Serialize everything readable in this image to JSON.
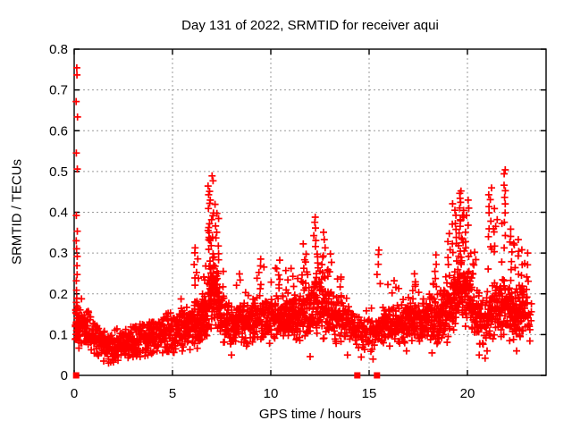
{
  "colors": {
    "marker": "#ff0000",
    "grid": "#9b9b9b",
    "axis": "#000000",
    "text": "#000000",
    "background": "#ffffff"
  },
  "chart_data": {
    "type": "scatter",
    "title": "Day 131 of 2022, SRMTID for receiver aqui",
    "xlabel": "GPS time / hours",
    "ylabel": "SRMTID / TECUs",
    "xlim": [
      0,
      24
    ],
    "ylim": [
      0,
      0.8
    ],
    "xticks": [
      0,
      5,
      10,
      15,
      20
    ],
    "xtick_labels": [
      "0",
      "5",
      "10",
      "15",
      "20"
    ],
    "yticks": [
      0,
      0.1,
      0.2,
      0.3,
      0.4,
      0.5,
      0.6,
      0.7,
      0.8
    ],
    "ytick_labels": [
      "0",
      "0.1",
      "0.2",
      "0.3",
      "0.4",
      "0.5",
      "0.6",
      "0.7",
      "0.8"
    ],
    "grid": true,
    "legend": "none",
    "marker": "plus",
    "series_name": "SRMTID",
    "band_median": [
      [
        0.05,
        0.13
      ],
      [
        0.4,
        0.12
      ],
      [
        0.8,
        0.105
      ],
      [
        1.2,
        0.085
      ],
      [
        1.6,
        0.07
      ],
      [
        2.0,
        0.072
      ],
      [
        2.5,
        0.08
      ],
      [
        3.0,
        0.088
      ],
      [
        3.5,
        0.085
      ],
      [
        4.0,
        0.095
      ],
      [
        4.5,
        0.1
      ],
      [
        5.0,
        0.108
      ],
      [
        5.5,
        0.112
      ],
      [
        6.0,
        0.12
      ],
      [
        6.4,
        0.135
      ],
      [
        6.8,
        0.16
      ],
      [
        7.0,
        0.21
      ],
      [
        7.2,
        0.19
      ],
      [
        7.5,
        0.15
      ],
      [
        7.9,
        0.125
      ],
      [
        8.4,
        0.12
      ],
      [
        9.0,
        0.128
      ],
      [
        9.4,
        0.138
      ],
      [
        9.8,
        0.132
      ],
      [
        10.3,
        0.142
      ],
      [
        10.8,
        0.148
      ],
      [
        11.2,
        0.142
      ],
      [
        11.6,
        0.15
      ],
      [
        12.0,
        0.165
      ],
      [
        12.3,
        0.175
      ],
      [
        12.7,
        0.16
      ],
      [
        13.1,
        0.15
      ],
      [
        13.5,
        0.138
      ],
      [
        14.0,
        0.12
      ],
      [
        14.5,
        0.105
      ],
      [
        15.0,
        0.1
      ],
      [
        15.5,
        0.115
      ],
      [
        16.0,
        0.125
      ],
      [
        16.5,
        0.12
      ],
      [
        17.0,
        0.13
      ],
      [
        17.5,
        0.128
      ],
      [
        18.0,
        0.132
      ],
      [
        18.5,
        0.142
      ],
      [
        19.0,
        0.16
      ],
      [
        19.4,
        0.19
      ],
      [
        19.8,
        0.21
      ],
      [
        20.1,
        0.19
      ],
      [
        20.5,
        0.14
      ],
      [
        20.9,
        0.125
      ],
      [
        21.2,
        0.15
      ],
      [
        21.6,
        0.16
      ],
      [
        22.0,
        0.17
      ],
      [
        22.4,
        0.155
      ],
      [
        22.7,
        0.165
      ],
      [
        23.0,
        0.15
      ],
      [
        23.25,
        0.135
      ]
    ],
    "band_halfwidth": [
      [
        0,
        0.045
      ],
      [
        1.6,
        0.028
      ],
      [
        3,
        0.03
      ],
      [
        5,
        0.038
      ],
      [
        6.6,
        0.05
      ],
      [
        7.1,
        0.065
      ],
      [
        8,
        0.038
      ],
      [
        10,
        0.042
      ],
      [
        12,
        0.05
      ],
      [
        12.4,
        0.055
      ],
      [
        13.5,
        0.045
      ],
      [
        14.5,
        0.032
      ],
      [
        15.2,
        0.03
      ],
      [
        16,
        0.038
      ],
      [
        17,
        0.042
      ],
      [
        18.5,
        0.048
      ],
      [
        19.6,
        0.065
      ],
      [
        20.2,
        0.06
      ],
      [
        20.9,
        0.038
      ],
      [
        21.5,
        0.055
      ],
      [
        22,
        0.055
      ],
      [
        22.7,
        0.05
      ],
      [
        23.25,
        0.042
      ]
    ],
    "upper_tail": [
      [
        0,
        0.08
      ],
      [
        1.6,
        0.025
      ],
      [
        3,
        0.035
      ],
      [
        4.5,
        0.06
      ],
      [
        5.5,
        0.07
      ],
      [
        6.4,
        0.12
      ],
      [
        7.0,
        0.22
      ],
      [
        7.3,
        0.18
      ],
      [
        7.9,
        0.07
      ],
      [
        8.5,
        0.09
      ],
      [
        9.4,
        0.12
      ],
      [
        10.3,
        0.12
      ],
      [
        11,
        0.09
      ],
      [
        11.7,
        0.13
      ],
      [
        12.3,
        0.17
      ],
      [
        13,
        0.12
      ],
      [
        13.6,
        0.09
      ],
      [
        14.5,
        0.05
      ],
      [
        15.5,
        0.15
      ],
      [
        16.3,
        0.08
      ],
      [
        17.3,
        0.09
      ],
      [
        18.3,
        0.12
      ],
      [
        19.2,
        0.18
      ],
      [
        19.7,
        0.21
      ],
      [
        20.1,
        0.17
      ],
      [
        20.7,
        0.07
      ],
      [
        21.2,
        0.22
      ],
      [
        21.9,
        0.26
      ],
      [
        22.4,
        0.16
      ],
      [
        22.8,
        0.12
      ],
      [
        23.1,
        0.09
      ],
      [
        23.25,
        0.07
      ]
    ],
    "density_per_hour": [
      [
        0,
        105
      ],
      [
        1,
        95
      ],
      [
        3,
        90
      ],
      [
        5,
        95
      ],
      [
        6.7,
        150
      ],
      [
        7.3,
        130
      ],
      [
        8,
        100
      ],
      [
        10,
        105
      ],
      [
        12,
        115
      ],
      [
        13,
        105
      ],
      [
        14.2,
        75
      ],
      [
        15,
        65
      ],
      [
        15.7,
        85
      ],
      [
        17,
        100
      ],
      [
        18.5,
        110
      ],
      [
        19.5,
        160
      ],
      [
        20.3,
        115
      ],
      [
        20.8,
        75
      ],
      [
        21.3,
        105
      ],
      [
        22,
        125
      ],
      [
        22.7,
        135
      ],
      [
        23.05,
        65
      ],
      [
        23.25,
        35
      ]
    ],
    "x_data_range": [
      0.05,
      23.28
    ],
    "spike_columns": [
      {
        "x": 0.12,
        "jitter": 0.05,
        "ys": [
          0.757,
          0.739,
          0.669,
          0.636,
          0.544,
          0.509,
          0.395,
          0.355,
          0.33,
          0.31,
          0.292,
          0.27,
          0.25,
          0.23,
          0.21,
          0.19,
          0.18,
          0.17,
          0.16,
          0.15,
          0.14,
          0.13,
          0.12,
          0.11,
          0.1,
          0.09
        ]
      },
      {
        "x": 6.2,
        "jitter": 0.12,
        "ys": [
          0.315,
          0.3,
          0.285,
          0.27,
          0.255,
          0.24,
          0.22
        ]
      },
      {
        "x": 6.95,
        "jitter": 0.14,
        "ys": [
          0.487,
          0.478,
          0.465,
          0.45,
          0.44,
          0.43,
          0.42,
          0.41,
          0.4,
          0.39,
          0.38,
          0.37,
          0.36,
          0.35,
          0.34,
          0.335,
          0.33,
          0.32,
          0.31,
          0.3,
          0.29,
          0.28,
          0.27,
          0.26,
          0.25,
          0.24,
          0.23,
          0.22,
          0.21,
          0.2
        ]
      },
      {
        "x": 7.25,
        "jitter": 0.1,
        "ys": [
          0.42,
          0.4,
          0.385,
          0.365,
          0.35,
          0.335,
          0.315,
          0.3,
          0.285,
          0.27,
          0.255,
          0.24
        ]
      },
      {
        "x": 8.35,
        "jitter": 0.1,
        "ys": [
          0.25,
          0.235,
          0.22
        ]
      },
      {
        "x": 9.4,
        "jitter": 0.12,
        "ys": [
          0.285,
          0.27,
          0.255,
          0.24,
          0.22
        ]
      },
      {
        "x": 10.35,
        "jitter": 0.12,
        "ys": [
          0.285,
          0.265,
          0.245,
          0.225
        ]
      },
      {
        "x": 11.1,
        "jitter": 0.1,
        "ys": [
          0.26,
          0.24,
          0.22
        ]
      },
      {
        "x": 11.7,
        "jitter": 0.12,
        "ys": [
          0.32,
          0.3,
          0.285,
          0.265,
          0.245,
          0.225
        ]
      },
      {
        "x": 12.3,
        "jitter": 0.13,
        "ys": [
          0.39,
          0.375,
          0.36,
          0.345,
          0.33,
          0.315,
          0.3,
          0.288,
          0.275,
          0.262,
          0.25,
          0.238,
          0.225
        ]
      },
      {
        "x": 12.7,
        "jitter": 0.1,
        "ys": [
          0.35,
          0.33,
          0.31,
          0.29,
          0.27,
          0.25
        ]
      },
      {
        "x": 13.0,
        "jitter": 0.1,
        "ys": [
          0.3,
          0.28,
          0.26,
          0.24
        ]
      },
      {
        "x": 13.6,
        "jitter": 0.08,
        "ys": [
          0.24,
          0.22
        ]
      },
      {
        "x": 15.5,
        "jitter": 0.1,
        "ys": [
          0.31,
          0.295,
          0.27,
          0.245,
          0.225
        ]
      },
      {
        "x": 16.3,
        "jitter": 0.1,
        "ys": [
          0.235,
          0.215
        ]
      },
      {
        "x": 17.3,
        "jitter": 0.1,
        "ys": [
          0.25,
          0.23,
          0.21
        ]
      },
      {
        "x": 18.3,
        "jitter": 0.12,
        "ys": [
          0.295,
          0.275,
          0.255,
          0.235,
          0.215
        ]
      },
      {
        "x": 19.0,
        "jitter": 0.12,
        "ys": [
          0.35,
          0.33,
          0.31,
          0.29,
          0.27
        ]
      },
      {
        "x": 19.35,
        "jitter": 0.12,
        "ys": [
          0.42,
          0.405,
          0.39,
          0.375,
          0.36,
          0.34,
          0.32,
          0.3,
          0.28
        ]
      },
      {
        "x": 19.65,
        "jitter": 0.12,
        "ys": [
          0.455,
          0.445,
          0.435,
          0.425,
          0.41,
          0.395,
          0.38,
          0.365,
          0.35,
          0.335,
          0.32,
          0.305,
          0.29
        ]
      },
      {
        "x": 19.95,
        "jitter": 0.12,
        "ys": [
          0.43,
          0.41,
          0.39,
          0.37,
          0.35,
          0.33,
          0.31,
          0.29
        ]
      },
      {
        "x": 20.3,
        "jitter": 0.1,
        "ys": [
          0.3,
          0.275,
          0.25
        ]
      },
      {
        "x": 21.15,
        "jitter": 0.1,
        "ys": [
          0.46,
          0.445,
          0.43,
          0.415,
          0.4,
          0.38,
          0.36,
          0.34,
          0.31
        ]
      },
      {
        "x": 21.45,
        "jitter": 0.1,
        "ys": [
          0.41,
          0.38,
          0.35,
          0.32
        ]
      },
      {
        "x": 21.9,
        "jitter": 0.08,
        "ys": [
          0.503,
          0.496,
          0.468,
          0.452,
          0.437,
          0.42,
          0.4,
          0.375,
          0.345,
          0.315
        ]
      },
      {
        "x": 22.3,
        "jitter": 0.12,
        "ys": [
          0.36,
          0.34,
          0.32,
          0.3,
          0.28,
          0.26
        ]
      },
      {
        "x": 22.7,
        "jitter": 0.12,
        "ys": [
          0.33,
          0.31,
          0.29,
          0.27,
          0.25
        ]
      },
      {
        "x": 23.05,
        "jitter": 0.1,
        "ys": [
          0.3,
          0.27,
          0.24,
          0.21
        ]
      }
    ],
    "low_outliers": [
      [
        1.5,
        0.035
      ],
      [
        1.75,
        0.03
      ],
      [
        2.1,
        0.042
      ],
      [
        3.6,
        0.048
      ],
      [
        8.0,
        0.05
      ],
      [
        12.0,
        0.046
      ],
      [
        13.9,
        0.05
      ],
      [
        14.6,
        0.045
      ],
      [
        15.2,
        0.04
      ],
      [
        16.9,
        0.06
      ],
      [
        18.2,
        0.055
      ],
      [
        20.6,
        0.05
      ],
      [
        20.9,
        0.042
      ],
      [
        21.0,
        0.06
      ],
      [
        22.5,
        0.06
      ]
    ],
    "zero_square_markers_x": [
      0.1,
      14.4,
      15.4
    ]
  }
}
